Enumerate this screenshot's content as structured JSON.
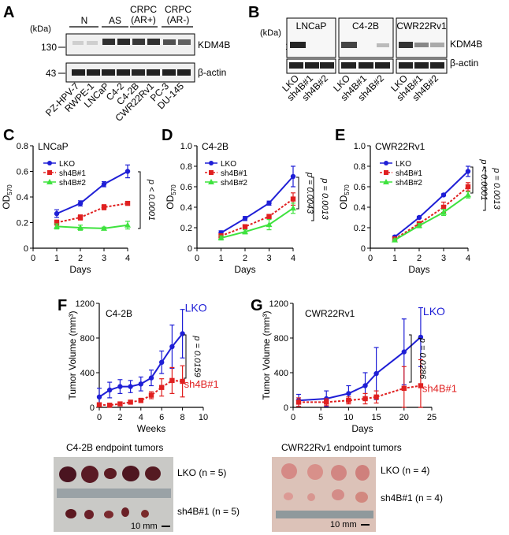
{
  "panels": {
    "A": {
      "letter": "A",
      "kda": "(kDa)",
      "groups": [
        "N",
        "AS",
        "CRPC",
        "(AR+)",
        "CRPC",
        "(AR-)"
      ],
      "markers": [
        "130",
        "43"
      ],
      "bands": [
        "KDM4B",
        "β-actin"
      ],
      "lanes": [
        "PZ-HPV-7",
        "RWPE-1",
        "LNCaP",
        "C4-2",
        "C4-2B",
        "CWR22Rv1",
        "PC-3",
        "DU-145"
      ]
    },
    "B": {
      "letter": "B",
      "kda": "(kDa)",
      "cells": [
        "LNCaP",
        "C4-2B",
        "CWR22Rv1"
      ],
      "markers": [
        "130",
        "43"
      ],
      "bands": [
        "KDM4B",
        "β-actin"
      ],
      "lanes": [
        "LKO",
        "sh4B#1",
        "sh4B#2"
      ]
    },
    "F_photo": {
      "title": "C4-2B endpoint tumors",
      "row1": "LKO (n = 5)",
      "row2": "sh4B#1 (n = 5)",
      "scale": "10 mm"
    },
    "G_photo": {
      "title": "CWR22Rv1 endpoint tumors",
      "row1": "LKO (n = 4)",
      "row2": "sh4B#1 (n = 4)",
      "scale": "10 mm"
    }
  },
  "colors": {
    "LKO": "#1f1fd6",
    "sh4B#1": "#e02020",
    "sh4B#2": "#3ee23e"
  },
  "chart_data": [
    {
      "id": "C",
      "letter": "C",
      "type": "line",
      "title": "LNCaP",
      "xlabel": "Days",
      "ylabel": "OD",
      "ylabel_sub": "570",
      "xlim": [
        0,
        4
      ],
      "ylim": [
        0,
        0.8
      ],
      "xticks": [
        0,
        1,
        2,
        3,
        4
      ],
      "xtick_labels": [
        "0",
        "1",
        "2",
        "3",
        "4"
      ],
      "yticks": [
        0,
        0.2,
        0.4,
        0.6,
        0.8
      ],
      "ytick_labels": [
        "0",
        "0.2",
        "0.4",
        "0.6",
        "0.8"
      ],
      "x": [
        1,
        2,
        3,
        4
      ],
      "series": [
        {
          "name": "LKO",
          "values": [
            0.27,
            0.35,
            0.5,
            0.6
          ],
          "err": [
            0.03,
            0.02,
            0.02,
            0.05
          ]
        },
        {
          "name": "sh4B#1",
          "values": [
            0.2,
            0.24,
            0.32,
            0.35
          ],
          "err": [
            0.02,
            0.02,
            0.02,
            0.01
          ]
        },
        {
          "name": "sh4B#2",
          "values": [
            0.17,
            0.16,
            0.155,
            0.18
          ],
          "err": [
            0.02,
            0.02,
            0.01,
            0.03
          ]
        }
      ],
      "legend": [
        "LKO",
        "sh4B#1",
        "sh4B#2"
      ],
      "pvalue": "p < 0.0001"
    },
    {
      "id": "D",
      "letter": "D",
      "type": "line",
      "title": "C4-2B",
      "xlabel": "Days",
      "ylabel": "OD",
      "ylabel_sub": "570",
      "xlim": [
        0,
        4
      ],
      "ylim": [
        0,
        1.0
      ],
      "xticks": [
        0,
        1,
        2,
        3,
        4
      ],
      "xtick_labels": [
        "0",
        "1",
        "2",
        "3",
        "4"
      ],
      "yticks": [
        0,
        0.2,
        0.4,
        0.6,
        0.8,
        1.0
      ],
      "ytick_labels": [
        "0",
        "0.2",
        "0.4",
        "0.6",
        "0.8",
        "1.0"
      ],
      "x": [
        1,
        2,
        3,
        4
      ],
      "series": [
        {
          "name": "LKO",
          "values": [
            0.15,
            0.29,
            0.44,
            0.7
          ],
          "err": [
            0.02,
            0.02,
            0.02,
            0.1
          ]
        },
        {
          "name": "sh4B#1",
          "values": [
            0.12,
            0.21,
            0.31,
            0.48
          ],
          "err": [
            0.02,
            0.02,
            0.02,
            0.06
          ]
        },
        {
          "name": "sh4B#2",
          "values": [
            0.1,
            0.16,
            0.23,
            0.39
          ],
          "err": [
            0.02,
            0.02,
            0.05,
            0.05
          ]
        }
      ],
      "legend": [
        "LKO",
        "sh4B#1",
        "sh4B#2"
      ],
      "pvalues": [
        "p = 0.0043",
        "p = 0.0013"
      ]
    },
    {
      "id": "E",
      "letter": "E",
      "type": "line",
      "title": "CWR22Rv1",
      "xlabel": "Days",
      "ylabel": "OD",
      "ylabel_sub": "570",
      "xlim": [
        0,
        4
      ],
      "ylim": [
        0,
        1.0
      ],
      "xticks": [
        0,
        1,
        2,
        3,
        4
      ],
      "xtick_labels": [
        "0",
        "1",
        "2",
        "3",
        "4"
      ],
      "yticks": [
        0,
        0.2,
        0.4,
        0.6,
        0.8,
        1.0
      ],
      "ytick_labels": [
        "0",
        "0.2",
        "0.4",
        "0.6",
        "0.8",
        "1.0"
      ],
      "x": [
        1,
        2,
        3,
        4
      ],
      "series": [
        {
          "name": "LKO",
          "values": [
            0.11,
            0.3,
            0.52,
            0.75
          ],
          "err": [
            0.01,
            0.01,
            0.01,
            0.05
          ]
        },
        {
          "name": "sh4B#1",
          "values": [
            0.09,
            0.24,
            0.4,
            0.6
          ],
          "err": [
            0.01,
            0.01,
            0.05,
            0.04
          ]
        },
        {
          "name": "sh4B#2",
          "values": [
            0.08,
            0.22,
            0.35,
            0.52
          ],
          "err": [
            0.01,
            0.02,
            0.03,
            0.03
          ]
        }
      ],
      "legend": [
        "LKO",
        "sh4B#1",
        "sh4B#2"
      ],
      "pvalues": [
        "p < 0.0001",
        "p = 0.0013"
      ]
    },
    {
      "id": "F",
      "letter": "F",
      "type": "line",
      "title": "C4-2B",
      "xlabel": "Weeks",
      "ylabel": "Tumor Volume (mm³)",
      "xlim": [
        0,
        10
      ],
      "ylim": [
        0,
        1200
      ],
      "xticks": [
        0,
        2,
        4,
        6,
        8,
        10
      ],
      "xtick_labels": [
        "0",
        "2",
        "4",
        "6",
        "8",
        "10"
      ],
      "yticks": [
        0,
        400,
        800,
        1200
      ],
      "ytick_labels": [
        "0",
        "400",
        "800",
        "1200"
      ],
      "series": [
        {
          "name": "LKO",
          "x": [
            0,
            1,
            2,
            3,
            4,
            5,
            6,
            7,
            8
          ],
          "values": [
            120,
            200,
            240,
            240,
            270,
            340,
            520,
            700,
            850
          ],
          "err": [
            100,
            90,
            80,
            70,
            80,
            90,
            130,
            250,
            280
          ]
        },
        {
          "name": "sh4B#1",
          "x": [
            0,
            1,
            2,
            3,
            4,
            5,
            6,
            7,
            8
          ],
          "values": [
            30,
            25,
            40,
            60,
            80,
            140,
            230,
            310,
            300
          ],
          "err": [
            20,
            15,
            15,
            20,
            25,
            40,
            100,
            150,
            180
          ]
        }
      ],
      "series_labels": [
        "LKO",
        "sh4B#1"
      ],
      "pvalue": "p = 0.0159"
    },
    {
      "id": "G",
      "letter": "G",
      "type": "line",
      "title": "CWR22Rv1",
      "xlabel": "Days",
      "ylabel": "Tumor Volume (mm³)",
      "xlim": [
        0,
        25
      ],
      "ylim": [
        0,
        1200
      ],
      "xticks": [
        0,
        5,
        10,
        15,
        20,
        25
      ],
      "xtick_labels": [
        "0",
        "5",
        "10",
        "15",
        "20",
        "25"
      ],
      "yticks": [
        0,
        400,
        800,
        1200
      ],
      "ytick_labels": [
        "0",
        "400",
        "800",
        "1200"
      ],
      "series": [
        {
          "name": "LKO",
          "x": [
            1,
            6,
            10,
            13,
            15,
            20,
            23
          ],
          "values": [
            80,
            100,
            160,
            250,
            390,
            640,
            810
          ],
          "err": [
            70,
            90,
            90,
            150,
            300,
            380,
            340
          ]
        },
        {
          "name": "sh4B#1",
          "x": [
            1,
            6,
            10,
            13,
            15,
            20,
            23
          ],
          "values": [
            60,
            60,
            80,
            100,
            120,
            220,
            250
          ],
          "err": [
            50,
            40,
            40,
            60,
            70,
            250,
            300
          ]
        }
      ],
      "series_labels": [
        "LKO",
        "sh4B#1"
      ],
      "pvalue": "p = 0.0286"
    }
  ]
}
